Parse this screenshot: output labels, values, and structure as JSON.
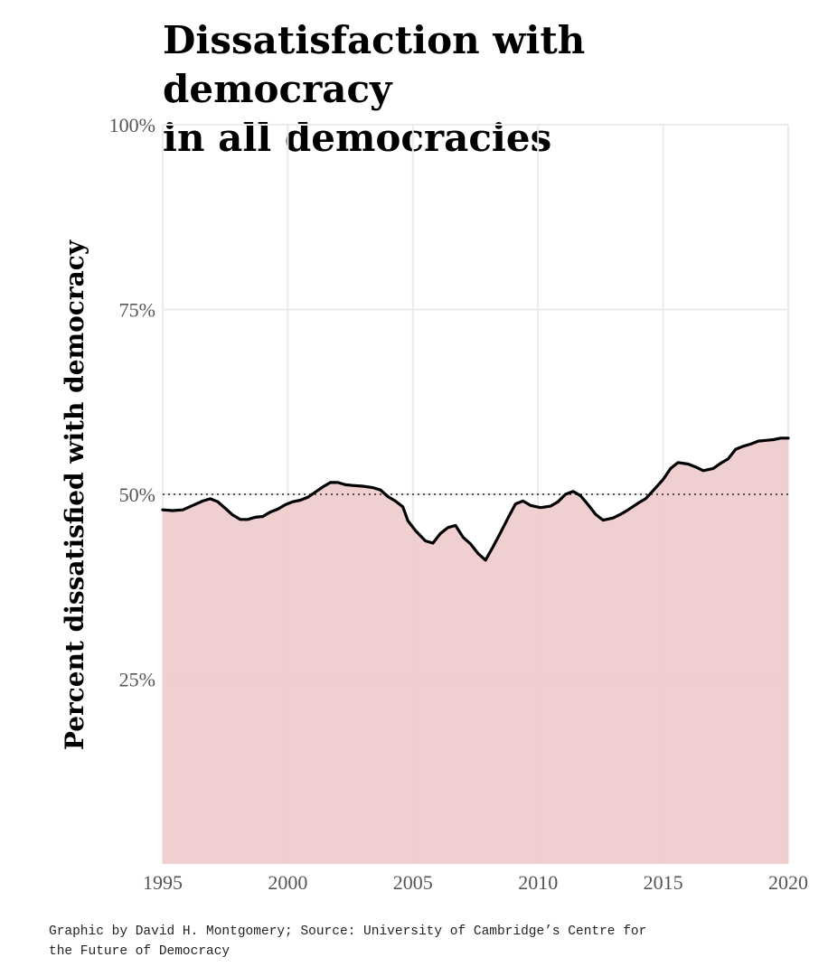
{
  "chart_data": {
    "type": "area",
    "title_lines": [
      "Dissatisfaction with democracy",
      "in all democracies"
    ],
    "ylabel": "Percent dissatisfied with democracy",
    "xlim": [
      1995,
      2020
    ],
    "ylim": [
      0,
      100
    ],
    "x_ticks": [
      "1995",
      "2000",
      "2005",
      "2010",
      "2015",
      "2020"
    ],
    "y_ticks": [
      "25%",
      "50%",
      "75%",
      "100%"
    ],
    "reference_line": 50,
    "grid": true,
    "colors": {
      "fill": "#efcccd",
      "line": "#000000",
      "grid": "#ebebeb",
      "reference": "#222222"
    },
    "series": [
      {
        "x": [
          1995,
          1995.4,
          1995.8,
          1996.2,
          1996.6,
          1996.9,
          1997.2,
          1997.5,
          1997.8,
          1998.1,
          1998.4,
          1998.7,
          1999,
          1999.3,
          1999.6,
          1999.9,
          2000.2,
          2000.5,
          2000.8,
          2001.1,
          2001.4,
          2001.7,
          2002,
          2002.3,
          2002.6,
          2003,
          2003.4,
          2003.7,
          2004,
          2004.3,
          2004.6,
          2004.8,
          2005.1,
          2005.5,
          2005.8,
          2006.1,
          2006.4,
          2006.7,
          2007,
          2007.3,
          2007.6,
          2007.9,
          2008.2,
          2008.5,
          2008.8,
          2009.1,
          2009.4,
          2009.7,
          2010.1,
          2010.5,
          2010.8,
          2011.1,
          2011.4,
          2011.7,
          2012,
          2012.3,
          2012.6,
          2013,
          2013.3,
          2013.6,
          2014,
          2014.3,
          2014.6,
          2015,
          2015.3,
          2015.6,
          2016,
          2016.3,
          2016.6,
          2017,
          2017.3,
          2017.6,
          2017.9,
          2018.2,
          2018.5,
          2018.8,
          2019.1,
          2019.4,
          2019.7,
          2020
        ],
        "values": [
          47.9,
          47.8,
          47.9,
          48.5,
          49.1,
          49.4,
          49,
          48.1,
          47.2,
          46.6,
          46.6,
          46.9,
          47,
          47.6,
          48,
          48.6,
          49,
          49.2,
          49.6,
          50.3,
          51,
          51.6,
          51.6,
          51.3,
          51.2,
          51.1,
          50.9,
          50.6,
          49.7,
          49.1,
          48.3,
          46.4,
          45.1,
          43.7,
          43.4,
          44.7,
          45.5,
          45.8,
          44.2,
          43.3,
          42,
          41.1,
          42.9,
          44.8,
          46.8,
          48.7,
          49.1,
          48.5,
          48.2,
          48.4,
          49,
          50,
          50.4,
          49.8,
          48.6,
          47.3,
          46.5,
          46.8,
          47.3,
          47.9,
          48.8,
          49.4,
          50.5,
          52,
          53.5,
          54.3,
          54.1,
          53.7,
          53.2,
          53.5,
          54.2,
          54.8,
          56.1,
          56.5,
          56.8,
          57.2,
          57.3,
          57.4,
          57.6,
          57.6
        ]
      }
    ],
    "caption_lines": [
      "Graphic by David H. Montgomery; Source: University of Cambridge’s Centre for",
      "the Future of Democracy"
    ]
  }
}
